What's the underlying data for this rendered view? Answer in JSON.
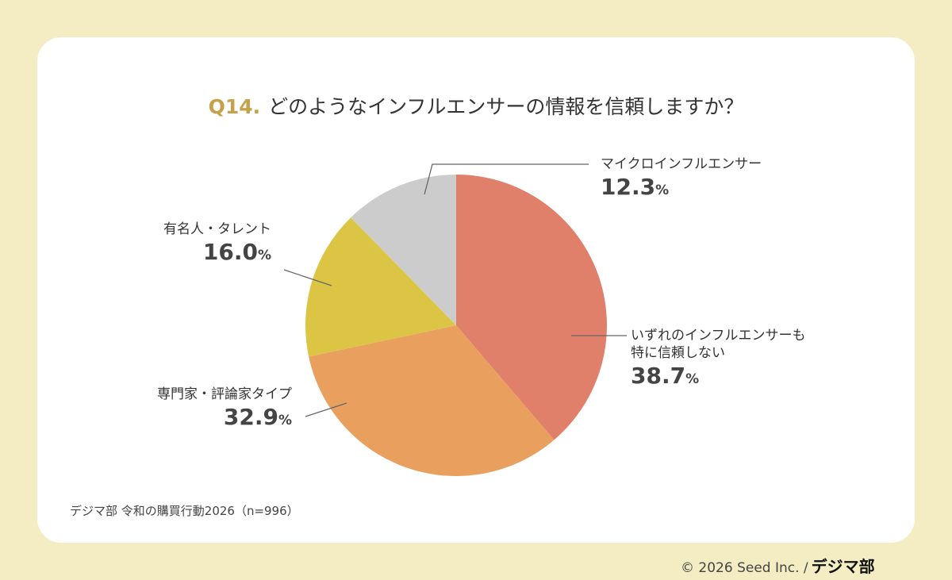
{
  "title": {
    "prefix": "Q14.",
    "text": "どのようなインフルエンサーの情報を信頼しますか？"
  },
  "source": "デジマ部 令和の購買行動2026（n=996）",
  "copyright": "© 2026 Seed Inc. /",
  "logo": "デジマ部",
  "chart_data": {
    "type": "pie",
    "start": "top",
    "direction": "clockwise",
    "unit": "%",
    "slices": [
      {
        "label": "いずれのインフルエンサーも特に信頼しない",
        "label_lines": [
          "いずれのインフルエンサーも",
          "特に信頼しない"
        ],
        "value": 38.7,
        "display": "38.7",
        "color": "#E0806A"
      },
      {
        "label": "専門家・評論家タイプ",
        "label_lines": [
          "専門家・評論家タイプ"
        ],
        "value": 32.9,
        "display": "32.9",
        "color": "#E9A05E"
      },
      {
        "label": "有名人・タレント",
        "label_lines": [
          "有名人・タレント"
        ],
        "value": 16.0,
        "display": "16.0",
        "color": "#DCC545"
      },
      {
        "label": "マイクロインフルエンサー",
        "label_lines": [
          "マイクロインフルエンサー"
        ],
        "value": 12.3,
        "display": "12.3",
        "color": "#CCCCCC"
      }
    ]
  }
}
